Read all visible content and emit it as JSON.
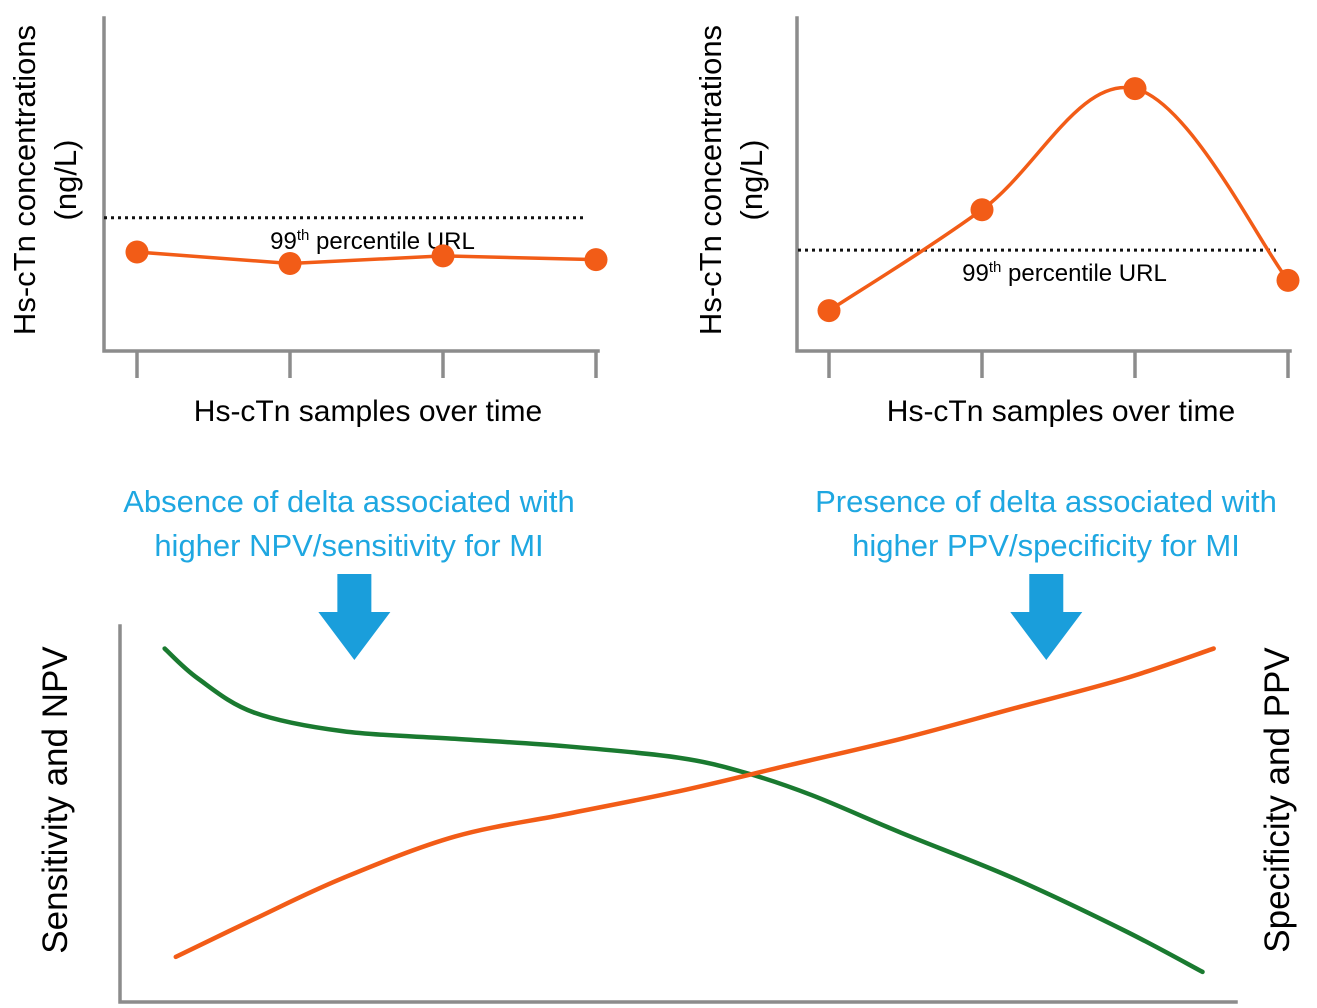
{
  "colors": {
    "orange": "#f25c17",
    "green": "#1a7a30",
    "blue": "#1a9edb",
    "axis": "#8c8c8c"
  },
  "chart_data": [
    {
      "type": "line",
      "ylabel_line1": "Hs-cTn concentrations",
      "ylabel_line2": "(ng/L)",
      "xlabel": "Hs-cTn samples over time",
      "x": [
        1,
        2,
        3,
        4
      ],
      "series": [
        {
          "values": [
            5.2,
            4.6,
            5.0,
            4.8
          ]
        }
      ],
      "reference_line": {
        "value": 7.0,
        "label_base": "99",
        "label_sup": "th",
        "label_rest": " percentile URL"
      },
      "ylim": [
        0,
        17.5
      ],
      "grid": false
    },
    {
      "type": "line",
      "ylabel_line1": "Hs-cTn concentrations",
      "ylabel_line2": "(ng/L)",
      "xlabel": "Hs-cTn samples over time",
      "x": [
        1,
        2,
        3,
        4
      ],
      "series": [
        {
          "values": [
            2.0,
            7.0,
            13.0,
            3.5
          ]
        }
      ],
      "reference_line": {
        "value": 5.0,
        "label_base": "99",
        "label_sup": "th",
        "label_rest": " percentile URL"
      },
      "ylim": [
        0,
        16.5
      ],
      "grid": false
    },
    {
      "type": "line",
      "ylabel_left": "Sensitivity and NPV",
      "ylabel_right": "Specificity and PPV",
      "xlim": [
        0,
        1
      ],
      "ylim": [
        0,
        1
      ],
      "series": [
        {
          "color": "green",
          "x": [
            0.04,
            0.07,
            0.12,
            0.2,
            0.3,
            0.4,
            0.5,
            0.56,
            0.62,
            0.7,
            0.8,
            0.9,
            0.97
          ],
          "values": [
            0.94,
            0.86,
            0.77,
            0.72,
            0.7,
            0.68,
            0.65,
            0.61,
            0.55,
            0.45,
            0.33,
            0.19,
            0.08
          ]
        },
        {
          "color": "orange",
          "x": [
            0.05,
            0.12,
            0.2,
            0.3,
            0.4,
            0.5,
            0.6,
            0.7,
            0.8,
            0.9,
            0.98
          ],
          "values": [
            0.12,
            0.22,
            0.33,
            0.44,
            0.5,
            0.56,
            0.63,
            0.7,
            0.78,
            0.86,
            0.94
          ]
        }
      ],
      "annotations": [
        {
          "lines": [
            "Absence of delta associated with",
            "higher NPV/sensitivity for MI"
          ],
          "arrow_x": 0.21
        },
        {
          "lines": [
            "Presence of delta associated with",
            "higher PPV/specificity for MI"
          ],
          "arrow_x": 0.83
        }
      ]
    }
  ]
}
